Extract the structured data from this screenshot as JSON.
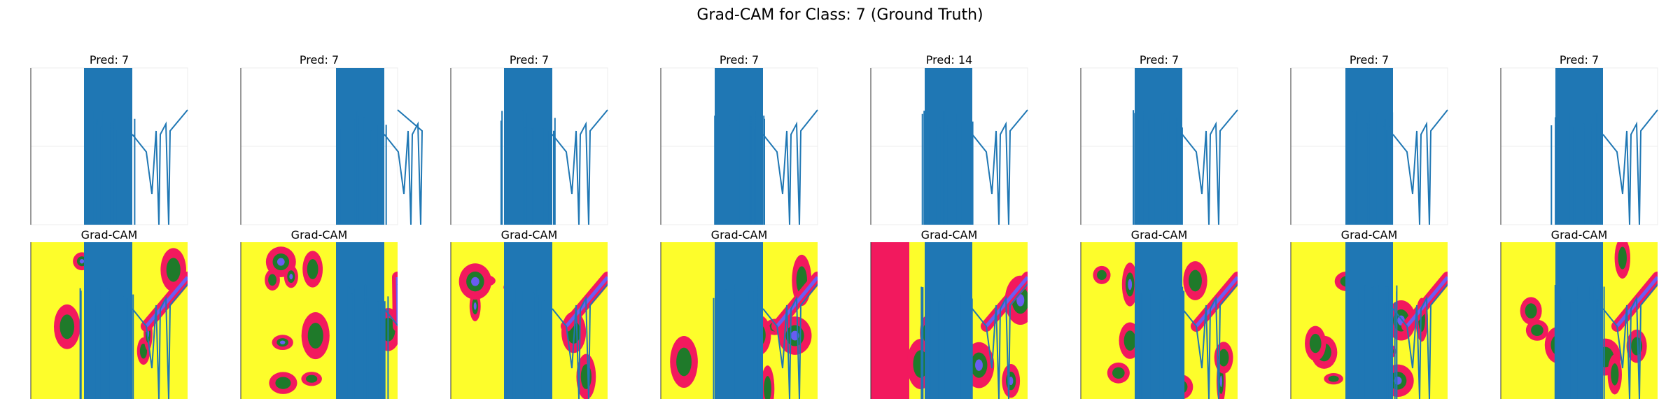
{
  "figure": {
    "title": "Grad-CAM for Class: 7 (Ground Truth)",
    "heatmap_title": "Grad-CAM"
  },
  "chart_data": {
    "type": "line",
    "title": "Grad-CAM for Class: 7 (Ground Truth)",
    "ground_truth_class": 7,
    "series_color": "#1f77b4",
    "heatmap_colors": [
      "#fdfd2b",
      "#f2195e",
      "#1f7a2a",
      "#1b78e6",
      "#6a5cf2"
    ],
    "grid": true,
    "panels": [
      {
        "pred_label": "Pred: 7",
        "pred": 7,
        "heatmap_label": "Grad-CAM"
      },
      {
        "pred_label": "Pred: 7",
        "pred": 7,
        "heatmap_label": "Grad-CAM"
      },
      {
        "pred_label": "Pred: 7",
        "pred": 7,
        "heatmap_label": "Grad-CAM"
      },
      {
        "pred_label": "Pred: 7",
        "pred": 7,
        "heatmap_label": "Grad-CAM"
      },
      {
        "pred_label": "Pred: 14",
        "pred": 14,
        "heatmap_label": "Grad-CAM"
      },
      {
        "pred_label": "Pred: 7",
        "pred": 7,
        "heatmap_label": "Grad-CAM"
      },
      {
        "pred_label": "Pred: 7",
        "pred": 7,
        "heatmap_label": "Grad-CAM"
      },
      {
        "pred_label": "Pred: 7",
        "pred": 7,
        "heatmap_label": "Grad-CAM"
      }
    ]
  }
}
